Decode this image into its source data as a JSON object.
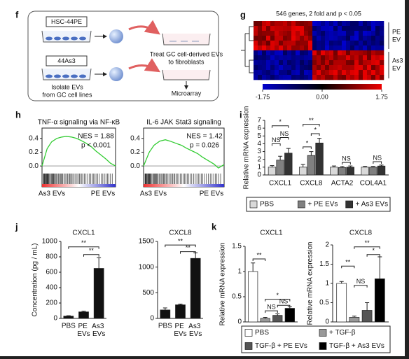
{
  "figure": {
    "panels": [
      "f",
      "g",
      "h",
      "i",
      "j",
      "k"
    ],
    "schematic": {
      "cell_line_1": "HSC-44PE",
      "cell_line_2": "44As3",
      "treat": [
        "Treat GC cell-derived EVs",
        "to fibroblasts"
      ],
      "isolate": [
        "Isolate EVs",
        "from GC cell lines"
      ],
      "readout": "Microarray"
    },
    "heatmap": {
      "title": "546 genes, 2 fold and p < 0.05",
      "row_groups": [
        [
          "PE",
          "EV"
        ],
        [
          "As3",
          "EV"
        ]
      ],
      "colorbar": {
        "lim": [
          -1.75,
          1.75
        ],
        "ticks": [
          -1.75,
          {
            "value": 0,
            "label": "0.00"
          },
          1.75
        ],
        "colors": [
          "#0000cc",
          "#000000",
          "#ee0000"
        ]
      }
    }
  },
  "chart_data": [
    {
      "type": "line",
      "title": "TNF-α signaling via NF-κB",
      "annotations": [
        "NES = 1.88",
        "p < 0.001"
      ],
      "x": [
        0,
        0.07,
        0.13,
        0.2,
        0.27,
        0.33,
        0.4,
        0.47,
        0.53,
        0.6,
        0.67,
        0.73,
        0.8,
        0.87,
        0.93,
        1
      ],
      "values": [
        0,
        0.25,
        0.35,
        0.4,
        0.42,
        0.43,
        0.42,
        0.4,
        0.37,
        0.33,
        0.28,
        0.22,
        0.16,
        0.1,
        0.04,
        0
      ],
      "color": "#33cc33",
      "xlim": [
        0,
        1
      ],
      "ylim": [
        -0.1,
        0.55
      ],
      "yticks": [
        {
          "value": 0,
          "label": "0.0"
        },
        0.2,
        0.4
      ],
      "x_end_labels": [
        "As3 EVs",
        "PE EVs"
      ]
    },
    {
      "type": "line",
      "title": "IL-6 JAK Stat3 signaling",
      "annotations": [
        "NES = 1.42",
        "p = 0.026"
      ],
      "x": [
        0,
        0.07,
        0.13,
        0.2,
        0.27,
        0.33,
        0.4,
        0.47,
        0.53,
        0.6,
        0.67,
        0.73,
        0.8,
        0.87,
        0.93,
        1
      ],
      "values": [
        0,
        0.2,
        0.3,
        0.36,
        0.38,
        0.36,
        0.33,
        0.3,
        0.26,
        0.22,
        0.18,
        0.13,
        0.08,
        0.03,
        -0.03,
        0.02
      ],
      "color": "#33cc33",
      "xlim": [
        0,
        1
      ],
      "ylim": [
        -0.1,
        0.55
      ],
      "yticks": [
        {
          "value": 0,
          "label": "0.0"
        },
        0.2,
        0.4
      ],
      "x_end_labels": [
        "As3 EVs",
        "PE EVs"
      ]
    },
    {
      "type": "bar",
      "ylabel": "Relative mRNA expression",
      "categories": [
        "CXCL1",
        "CXCL8",
        "ACTA2",
        "COL4A1"
      ],
      "series": [
        {
          "name": "PBS",
          "color": "#d9d9d9",
          "values": [
            1,
            1,
            1,
            1
          ],
          "errors": [
            0.2,
            0.35,
            0.15,
            0.1
          ]
        },
        {
          "name": "+ PE EVs",
          "color": "#808080",
          "values": [
            1.9,
            2.5,
            0.95,
            1.0
          ],
          "errors": [
            0.5,
            0.5,
            0.15,
            0.1
          ]
        },
        {
          "name": "+ As3 EVs",
          "color": "#333333",
          "values": [
            2.8,
            4.1,
            1.0,
            1.15
          ],
          "errors": [
            0.6,
            0.6,
            0.15,
            0.12
          ]
        }
      ],
      "ylim": [
        0,
        7
      ],
      "yticks": [
        0,
        1,
        2,
        3,
        4,
        5,
        6,
        7
      ],
      "annotations": [
        "*",
        "NS",
        "NS",
        "**",
        "*",
        "*",
        "NS",
        "NS"
      ],
      "legend": true
    },
    {
      "type": "bar",
      "title": "CXCL1",
      "ylabel": "Concentration (pg / mL)",
      "categories": [
        "PBS",
        "PE EVs",
        "As3 EVs"
      ],
      "values": [
        30,
        85,
        650
      ],
      "errors": [
        5,
        8,
        140
      ],
      "color": "#111111",
      "ylim": [
        0,
        1000
      ],
      "yticks": [
        0,
        200,
        400,
        600,
        800,
        1000
      ],
      "annotations": [
        "**",
        "**"
      ]
    },
    {
      "type": "bar",
      "title": "CXCL8",
      "categories": [
        "PBS",
        "PE EVs",
        "As3 EVs"
      ],
      "values": [
        165,
        265,
        1170
      ],
      "errors": [
        40,
        15,
        110
      ],
      "color": "#111111",
      "ylim": [
        0,
        1500
      ],
      "yticks": [
        0,
        500,
        1000,
        1500
      ],
      "annotations": [
        "**",
        "**"
      ]
    },
    {
      "type": "bar",
      "title": "CXCL1",
      "ylabel": "Relative mRNA expression",
      "series": [
        {
          "name": "PBS",
          "color": "#ffffff",
          "values": [
            1
          ],
          "errors": [
            0.17
          ]
        },
        {
          "name": "+ TGF-β",
          "color": "#999999",
          "values": [
            0.07
          ],
          "errors": [
            0.02
          ]
        },
        {
          "name": "TGF-β + PE EVs",
          "color": "#555555",
          "values": [
            0.13
          ],
          "errors": [
            0.03
          ]
        },
        {
          "name": "TGF-β + As3 EVs",
          "color": "#000000",
          "values": [
            0.27
          ],
          "errors": [
            0.03
          ]
        }
      ],
      "ylim": [
        0,
        1.5
      ],
      "yticks": [
        0,
        0.5,
        1,
        1.5
      ],
      "annotations": [
        "**",
        "NS",
        "*",
        "NS"
      ],
      "legend": true
    },
    {
      "type": "bar",
      "title": "CXCL8",
      "ylabel": "Relative mRNA expression",
      "series": [
        {
          "color": "#ffffff",
          "values": [
            1
          ],
          "errors": [
            0.05
          ]
        },
        {
          "color": "#999999",
          "values": [
            0.12
          ],
          "errors": [
            0.03
          ]
        },
        {
          "color": "#555555",
          "values": [
            0.3
          ],
          "errors": [
            0.2
          ]
        },
        {
          "color": "#000000",
          "values": [
            1.12
          ],
          "errors": [
            0.57
          ]
        }
      ],
      "ylim": [
        0,
        2
      ],
      "yticks": [
        0,
        0.5,
        1,
        1.5,
        2
      ],
      "annotations": [
        "**",
        "NS",
        "**",
        "*"
      ]
    }
  ]
}
